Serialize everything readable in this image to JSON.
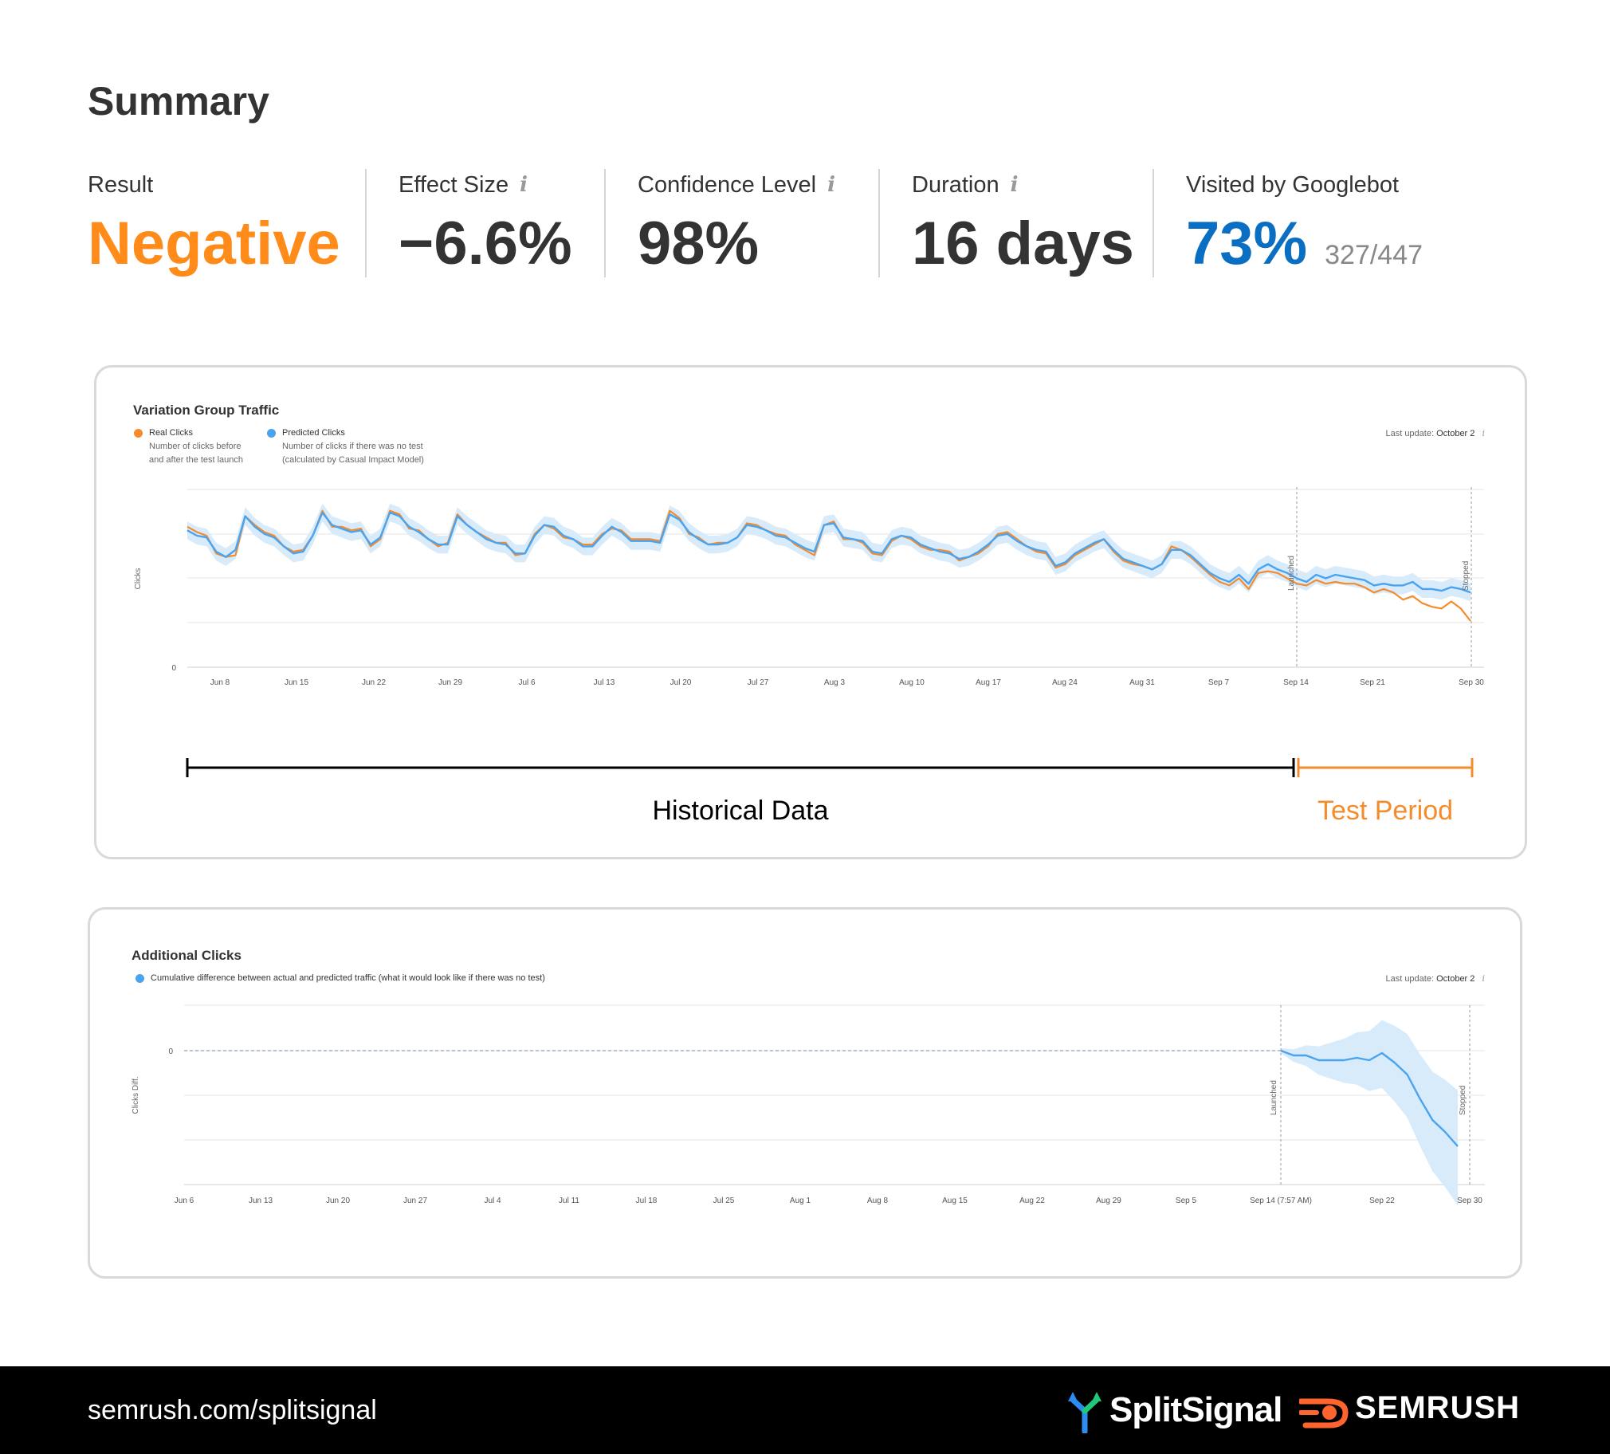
{
  "summary": {
    "title": "Summary",
    "metrics": [
      {
        "label": "Result",
        "value": "Negative",
        "color": "#ff8c1a",
        "info": false
      },
      {
        "label": "Effect Size",
        "value": "−6.6%",
        "color": "#333333",
        "info": true
      },
      {
        "label": "Confidence Level",
        "value": "98%",
        "color": "#333333",
        "info": true
      },
      {
        "label": "Duration",
        "value": "16 days",
        "color": "#333333",
        "info": true
      },
      {
        "label": "Visited by Googlebot",
        "value": "73%",
        "sub": "327/447",
        "color": "#0a6fc2",
        "info": false
      }
    ],
    "info_glyph": "i"
  },
  "traffic_card": {
    "title": "Variation Group Traffic",
    "legend": [
      {
        "name": "Real Clicks",
        "desc1": "Number of clicks before",
        "desc2": "and after the test launch",
        "color": "#f58c2c"
      },
      {
        "name": "Predicted Clicks",
        "desc1": "Number of clicks if there was no test",
        "desc2": "(calculated by Casual Impact Model)",
        "color": "#4aa3ef"
      }
    ],
    "last_update_label": "Last update:",
    "last_update_value": "October 2",
    "info_glyph": "i",
    "historical_label": "Historical Data",
    "test_period_label": "Test Period",
    "historical_color": "#000000",
    "test_color": "#f58c2c"
  },
  "additional_card": {
    "title": "Additional Clicks",
    "legend_text": "Cumulative difference between actual and predicted traffic (what it would look like if there was no test)",
    "legend_color": "#4aa3ef",
    "last_update_label": "Last update:",
    "last_update_value": "October 2",
    "info_glyph": "i"
  },
  "chart_data": [
    {
      "type": "line",
      "title": "Variation Group Traffic",
      "ylabel": "Clicks",
      "y_tick_labels": [
        "0"
      ],
      "x_tick_labels": [
        "Jun 8",
        "Jun 15",
        "Jun 22",
        "Jun 29",
        "Jul 6",
        "Jul 13",
        "Jul 20",
        "Jul 27",
        "Aug 3",
        "Aug 10",
        "Aug 17",
        "Aug 24",
        "Aug 31",
        "Sep 7",
        "Sep 14",
        "Sep 21",
        "Sep 30"
      ],
      "annotations": [
        "Launched",
        "Stopped"
      ],
      "grid": true,
      "legend": "top-left",
      "series": [
        {
          "name": "Real Clicks",
          "color": "#f58c2c",
          "values": [
            79,
            76,
            74,
            64,
            62,
            63,
            85,
            80,
            76,
            74,
            68,
            65,
            66,
            74,
            88,
            79,
            79,
            77,
            78,
            68,
            72,
            88,
            86,
            78,
            77,
            72,
            68,
            70,
            86,
            80,
            76,
            73,
            70,
            70,
            63,
            64,
            75,
            80,
            78,
            73,
            72,
            69,
            69,
            75,
            78,
            77,
            72,
            72,
            72,
            71,
            88,
            84,
            75,
            73,
            69,
            70,
            70,
            73,
            81,
            80,
            77,
            75,
            74,
            69,
            66,
            63,
            80,
            82,
            72,
            72,
            70,
            64,
            63,
            71,
            74,
            72,
            68,
            66,
            66,
            65,
            60,
            62,
            64,
            68,
            75,
            76,
            72,
            68,
            65,
            64,
            56,
            58,
            63,
            66,
            69,
            72,
            65,
            60,
            58,
            57,
            55,
            58,
            68,
            66,
            62,
            57,
            52,
            48,
            46,
            50,
            44,
            53,
            54,
            53,
            50,
            47,
            46,
            49,
            47,
            48,
            47,
            47,
            45,
            42,
            44,
            42,
            38,
            40,
            36,
            34,
            33,
            37,
            33,
            26
          ]
        },
        {
          "name": "Predicted Clicks",
          "color": "#4aa3ef",
          "values": [
            77,
            74,
            73,
            65,
            62,
            66,
            85,
            79,
            75,
            73,
            68,
            64,
            65,
            74,
            87,
            80,
            78,
            76,
            77,
            69,
            73,
            87,
            85,
            79,
            76,
            72,
            69,
            69,
            85,
            80,
            76,
            72,
            70,
            69,
            64,
            64,
            74,
            80,
            79,
            74,
            72,
            68,
            68,
            74,
            79,
            76,
            71,
            71,
            71,
            70,
            86,
            83,
            76,
            72,
            69,
            69,
            70,
            73,
            80,
            79,
            77,
            74,
            73,
            70,
            67,
            65,
            80,
            81,
            73,
            72,
            71,
            65,
            64,
            72,
            74,
            73,
            69,
            67,
            65,
            64,
            61,
            62,
            65,
            69,
            74,
            75,
            71,
            68,
            66,
            65,
            57,
            59,
            64,
            67,
            70,
            72,
            66,
            61,
            59,
            57,
            55,
            58,
            66,
            66,
            63,
            58,
            53,
            50,
            48,
            52,
            47,
            55,
            58,
            55,
            53,
            50,
            48,
            52,
            50,
            52,
            51,
            50,
            49,
            46,
            47,
            46,
            46,
            48,
            44,
            44,
            43,
            45,
            44,
            42
          ]
        }
      ],
      "launched_index": 117,
      "stopped_index": 134
    },
    {
      "type": "area",
      "title": "Additional Clicks",
      "ylabel": "Clicks Diff.",
      "y_tick_labels": [
        "0"
      ],
      "x_tick_labels": [
        "Jun 6",
        "Jun 13",
        "Jun 20",
        "Jun 27",
        "Jul 4",
        "Jul 11",
        "Jul 18",
        "Jul 25",
        "Aug 1",
        "Aug 8",
        "Aug 15",
        "Aug 22",
        "Aug 29",
        "Sep 5",
        "Sep 14 (7:57 AM)",
        "Sep 22",
        "Sep 30"
      ],
      "annotations": [
        "Launched",
        "Stopped"
      ],
      "grid": true,
      "series": [
        {
          "name": "Cumulative difference",
          "color": "#4aa3ef",
          "values": [
            0,
            -2,
            -2,
            -4,
            -4,
            -4,
            -3,
            -4,
            -1,
            -5,
            -10,
            -20,
            -29,
            -34,
            -40
          ]
        }
      ]
    }
  ]
}
